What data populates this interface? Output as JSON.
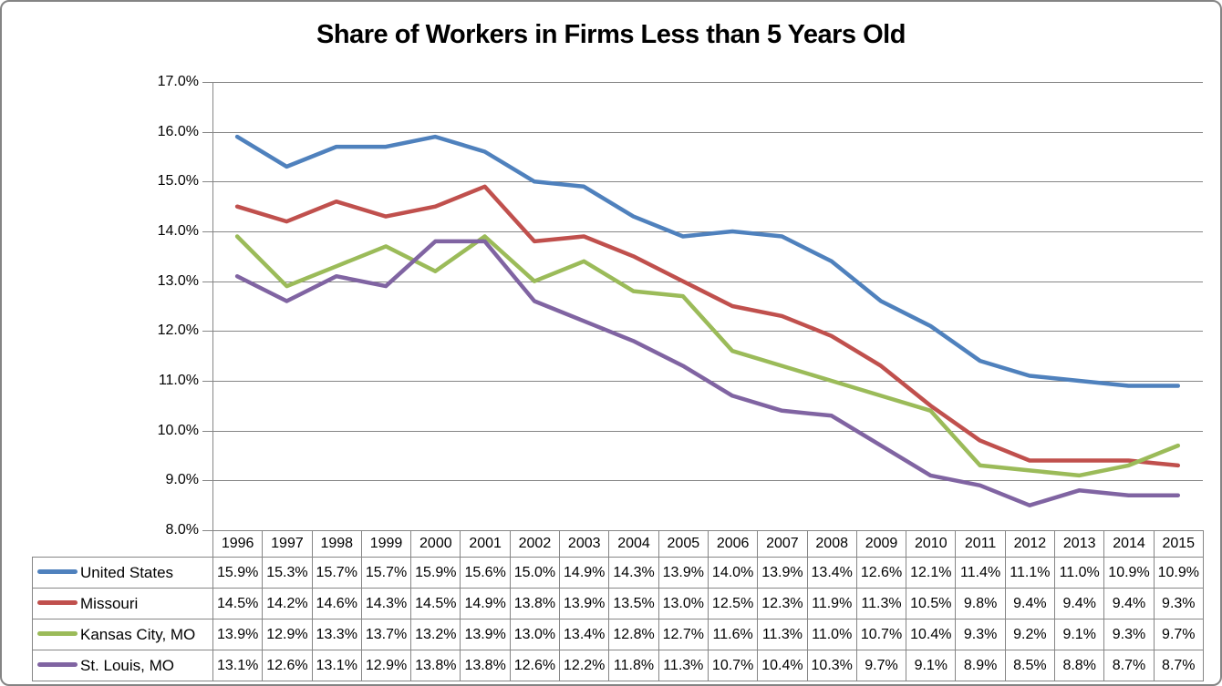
{
  "frame": {
    "background_color": "#FFFFFF",
    "border_color": "#848484"
  },
  "chart_data": {
    "type": "line",
    "title": "Share of Workers in Firms Less than 5 Years Old",
    "xlabel": "",
    "ylabel": "",
    "categories": [
      "1996",
      "1997",
      "1998",
      "1999",
      "2000",
      "2001",
      "2002",
      "2003",
      "2004",
      "2005",
      "2006",
      "2007",
      "2008",
      "2009",
      "2010",
      "2011",
      "2012",
      "2013",
      "2014",
      "2015"
    ],
    "series": [
      {
        "name": "United States",
        "color": "#4F81BD",
        "values": [
          15.9,
          15.3,
          15.7,
          15.7,
          15.9,
          15.6,
          15.0,
          14.9,
          14.3,
          13.9,
          14.0,
          13.9,
          13.4,
          12.6,
          12.1,
          11.4,
          11.1,
          11.0,
          10.9,
          10.9
        ]
      },
      {
        "name": "Missouri",
        "color": "#C0504D",
        "values": [
          14.5,
          14.2,
          14.6,
          14.3,
          14.5,
          14.9,
          13.8,
          13.9,
          13.5,
          13.0,
          12.5,
          12.3,
          11.9,
          11.3,
          10.5,
          9.8,
          9.4,
          9.4,
          9.4,
          9.3
        ]
      },
      {
        "name": "Kansas City, MO",
        "color": "#9BBB59",
        "values": [
          13.9,
          12.9,
          13.3,
          13.7,
          13.2,
          13.9,
          13.0,
          13.4,
          12.8,
          12.7,
          11.6,
          11.3,
          11.0,
          10.7,
          10.4,
          9.3,
          9.2,
          9.1,
          9.3,
          9.7
        ]
      },
      {
        "name": "St. Louis, MO",
        "color": "#8064A2",
        "values": [
          13.1,
          12.6,
          13.1,
          12.9,
          13.8,
          13.8,
          12.6,
          12.2,
          11.8,
          11.3,
          10.7,
          10.4,
          10.3,
          9.7,
          9.1,
          8.9,
          8.5,
          8.8,
          8.7,
          8.7
        ]
      }
    ],
    "ylim": [
      8.0,
      17.0
    ],
    "ytick_step": 1.0,
    "ytick_labels_top_down": [
      "17.0%",
      "16.0%",
      "15.0%",
      "14.0%",
      "13.0%",
      "12.0%",
      "11.0%",
      "10.0%",
      "9.0%",
      "8.0%"
    ],
    "value_format": "percent_one_decimal",
    "grid": "horizontal",
    "grid_color": "#868686",
    "axis_color": "#868686",
    "legend_position": "data-table-left-column"
  }
}
